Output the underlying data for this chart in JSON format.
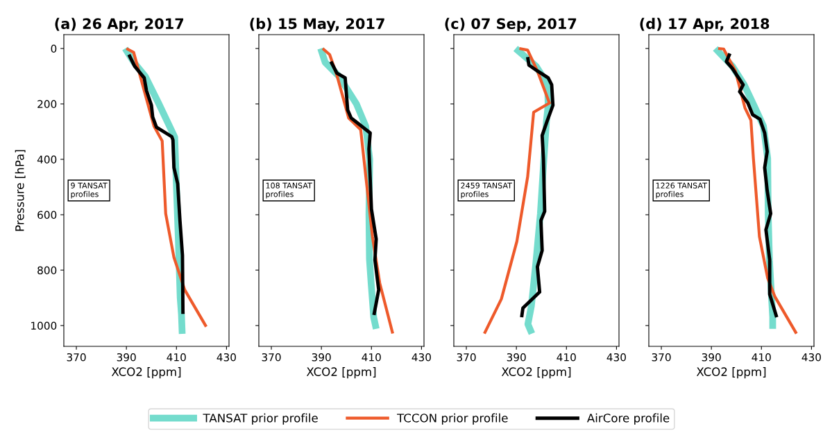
{
  "chart_data": [
    {
      "type": "line",
      "title": "(a) 26 Apr, 2017",
      "xlabel": "XCO2 [ppm]",
      "ylabel": "Pressure [hPa]",
      "annotations": [
        "9 TANSAT\nprofiles"
      ],
      "xlim": [
        365,
        431
      ],
      "ylim": [
        1075,
        -50
      ],
      "xticks": [
        370,
        390,
        410,
        430
      ],
      "yticks": [
        0,
        200,
        400,
        600,
        800,
        1000
      ],
      "legend": "bottom",
      "grid": false,
      "series": [
        {
          "name": "TANSAT prior profile",
          "color": "#74dccd",
          "x": [
            389.5,
            393,
            397.5,
            403,
            409.3,
            410,
            410.8,
            411.5,
            412,
            412.3
          ],
          "values": [
            0,
            50,
            100,
            200,
            320,
            500,
            700,
            900,
            960,
            1030
          ]
        },
        {
          "name": "TCCON prior profile",
          "color": "#ee5a2b",
          "x": [
            390,
            392.9,
            395.2,
            401,
            404.3,
            405.7,
            409,
            413.3,
            421.9
          ],
          "values": [
            0,
            14,
            89,
            280,
            334,
            596,
            754,
            871,
            1004
          ]
        },
        {
          "name": "AirCore profile",
          "color": "#000000",
          "x": [
            391,
            393.3,
            397.1,
            398,
            400,
            400.5,
            402,
            408.1,
            408.6,
            409,
            410.5,
            411.4,
            412.4,
            412.6
          ],
          "values": [
            22,
            64,
            106,
            151,
            205,
            247,
            284,
            318,
            330,
            430,
            488,
            621,
            746,
            958
          ]
        }
      ]
    },
    {
      "type": "line",
      "title": "(b) 15 May, 2017",
      "xlabel": "XCO2 [ppm]",
      "annotations": [
        "108 TANSAT\nprofiles"
      ],
      "xlim": [
        365,
        431
      ],
      "ylim": [
        1075,
        -50
      ],
      "xticks": [
        370,
        390,
        410,
        430
      ],
      "yticks": [
        0,
        200,
        400,
        600,
        800,
        1000
      ],
      "tick_labels": "x",
      "grid": false,
      "series": [
        {
          "color": "#74dccd",
          "x": [
            389.7,
            391.5,
            397,
            404,
            407.7,
            409.3,
            409,
            409.2,
            409.9,
            410.9,
            411.9
          ],
          "values": [
            0,
            50,
            100,
            200,
            280,
            400,
            600,
            760,
            850,
            970,
            1012
          ]
        },
        {
          "color": "#ee5a2b",
          "x": [
            390.5,
            393.3,
            396.2,
            400.9,
            405.7,
            410.4,
            413.3,
            418.5
          ],
          "values": [
            0,
            22,
            97,
            251,
            293,
            679,
            846,
            1029
          ]
        },
        {
          "color": "#000000",
          "x": [
            393.8,
            396.2,
            399.5,
            400,
            400.5,
            401.9,
            409.5,
            409,
            410,
            411.9,
            411.4,
            412.9,
            411
          ],
          "values": [
            47,
            89,
            106,
            164,
            222,
            251,
            305,
            363,
            580,
            688,
            763,
            871,
            962
          ]
        }
      ]
    },
    {
      "type": "line",
      "title": "(c) 07 Sep, 2017",
      "xlabel": "XCO2 [ppm]",
      "annotations": [
        "2459 TANSAT\nprofiles"
      ],
      "xlim": [
        365,
        431
      ],
      "ylim": [
        1075,
        -50
      ],
      "xticks": [
        370,
        390,
        410,
        430
      ],
      "yticks": [
        0,
        200,
        400,
        600,
        800,
        1000
      ],
      "tick_labels": "x",
      "grid": false,
      "series": [
        {
          "color": "#74dccd",
          "x": [
            389.7,
            397.9,
            402.5,
            402.7,
            402,
            401,
            399.6,
            397.9,
            396,
            394.6,
            396.2
          ],
          "values": [
            0,
            64,
            131,
            205,
            264,
            397,
            596,
            763,
            929,
            995,
            1029
          ]
        },
        {
          "color": "#ee5a2b",
          "x": [
            391.2,
            394.5,
            398.4,
            403.2,
            396.9,
            394.5,
            390.2,
            384,
            377.2
          ],
          "values": [
            0,
            6,
            81,
            197,
            230,
            463,
            696,
            904,
            1029
          ]
        },
        {
          "color": "#000000",
          "x": [
            394.5,
            395,
            398.4,
            402.7,
            404.1,
            404.6,
            402.2,
            400.3,
            400.8,
            401.3,
            399.8,
            400.3,
            398.4,
            399.3,
            392.6,
            392.1
          ],
          "values": [
            31,
            60,
            81,
            106,
            131,
            205,
            264,
            314,
            397,
            588,
            621,
            729,
            788,
            879,
            937,
            970
          ]
        }
      ]
    },
    {
      "type": "line",
      "title": "(d) 17 Apr, 2018",
      "xlabel": "XCO2 [ppm]",
      "annotations": [
        "1226 TANSAT\nprofiles"
      ],
      "xlim": [
        365,
        431
      ],
      "ylim": [
        1075,
        -50
      ],
      "xticks": [
        370,
        390,
        410,
        430
      ],
      "yticks": [
        0,
        200,
        400,
        600,
        800,
        1000
      ],
      "tick_labels": "x",
      "grid": false,
      "series": [
        {
          "color": "#74dccd",
          "x": [
            391.6,
            398.4,
            403.1,
            407,
            410.8,
            412.5,
            412.7,
            413.2,
            414.5,
            414.5
          ],
          "values": [
            0,
            64,
            131,
            205,
            280,
            397,
            596,
            763,
            970,
            1012
          ]
        },
        {
          "color": "#ee5a2b",
          "x": [
            392.7,
            394.9,
            399.6,
            403.4,
            405.8,
            406.8,
            409.2,
            412.5,
            415.4,
            424
          ],
          "values": [
            0,
            2,
            81,
            214,
            259,
            397,
            679,
            829,
            896,
            1029
          ]
        },
        {
          "color": "#000000",
          "x": [
            397.4,
            396,
            398.4,
            402.7,
            401.3,
            404.6,
            406.5,
            409.4,
            411.3,
            412.3,
            411.3,
            412.3,
            413.7,
            411.8,
            413.3,
            413.3,
            416.1
          ],
          "values": [
            18,
            47,
            72,
            131,
            156,
            197,
            239,
            255,
            305,
            372,
            430,
            513,
            596,
            654,
            763,
            887,
            970
          ]
        }
      ]
    }
  ]
}
